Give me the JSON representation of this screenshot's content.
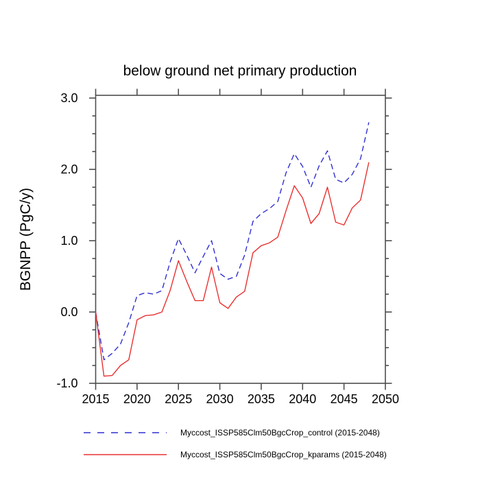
{
  "chart_data": {
    "type": "line",
    "title": "below ground net primary production",
    "xlabel": "",
    "ylabel": "BGNPP  (PgC/y)",
    "xlim": [
      2015,
      2050
    ],
    "ylim": [
      -1.0,
      3.0
    ],
    "grid": false,
    "legend_position": "below-chart",
    "x_tick_labels": [
      "2015",
      "2020",
      "2025",
      "2030",
      "2035",
      "2040",
      "2045",
      "2050"
    ],
    "x_tick_values": [
      2015,
      2020,
      2025,
      2030,
      2035,
      2040,
      2045,
      2050
    ],
    "y_tick_labels": [
      "-1.0",
      "0.0",
      "1.0",
      "2.0",
      "3.0"
    ],
    "y_tick_values": [
      -1.0,
      0.0,
      1.0,
      2.0,
      3.0
    ],
    "y_minor_tick_step": 0.25,
    "x": [
      2015,
      2016,
      2017,
      2018,
      2019,
      2020,
      2021,
      2022,
      2023,
      2024,
      2025,
      2026,
      2027,
      2028,
      2029,
      2030,
      2031,
      2032,
      2033,
      2034,
      2035,
      2036,
      2037,
      2038,
      2039,
      2040,
      2041,
      2042,
      2043,
      2044,
      2045,
      2046,
      2047,
      2048
    ],
    "series": [
      {
        "name": "Myccost_ISSP585Clm50BgcCrop_control (2015-2048)",
        "color": "#2e2ed2",
        "line_style": "dashed",
        "values": [
          0.0,
          -0.67,
          -0.58,
          -0.45,
          -0.15,
          0.23,
          0.27,
          0.25,
          0.3,
          0.7,
          1.03,
          0.8,
          0.55,
          0.78,
          1.0,
          0.54,
          0.46,
          0.5,
          0.8,
          1.27,
          1.38,
          1.45,
          1.55,
          1.95,
          2.22,
          2.04,
          1.75,
          2.05,
          2.26,
          1.86,
          1.81,
          1.93,
          2.15,
          2.66
        ]
      },
      {
        "name": "Myccost_ISSP585Clm50BgcCrop_kparams (2015-2048)",
        "color": "#e93030",
        "line_style": "solid",
        "values": [
          0.0,
          -0.9,
          -0.89,
          -0.75,
          -0.67,
          -0.11,
          -0.05,
          -0.04,
          0.0,
          0.3,
          0.72,
          0.43,
          0.16,
          0.16,
          0.63,
          0.13,
          0.05,
          0.21,
          0.29,
          0.83,
          0.93,
          0.97,
          1.05,
          1.42,
          1.77,
          1.6,
          1.24,
          1.38,
          1.75,
          1.26,
          1.22,
          1.46,
          1.57,
          2.1
        ]
      }
    ]
  },
  "colors": {
    "background": "#ffffff",
    "axis": "#4d4d4d",
    "text": "#000000"
  }
}
